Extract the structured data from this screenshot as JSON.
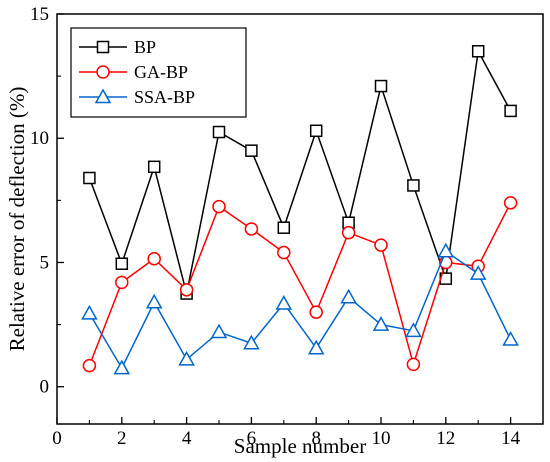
{
  "chart_data": {
    "type": "line",
    "title": "",
    "xlabel": "Sample number",
    "ylabel": "Relative error of deflection (%)",
    "xlim": [
      0,
      15
    ],
    "ylim": [
      -1.5,
      15
    ],
    "x_ticks": [
      0,
      2,
      4,
      6,
      8,
      10,
      12,
      14
    ],
    "y_ticks": [
      0,
      5,
      10,
      15
    ],
    "grid": false,
    "legend_position": "top-left",
    "x": [
      1,
      2,
      3,
      4,
      5,
      6,
      7,
      8,
      9,
      10,
      11,
      12,
      13,
      14
    ],
    "series": [
      {
        "name": "BP",
        "color": "#000000",
        "marker": "square",
        "values": [
          8.4,
          4.95,
          8.85,
          3.75,
          10.25,
          9.5,
          6.4,
          10.3,
          6.6,
          12.1,
          8.1,
          4.35,
          13.5,
          11.1
        ]
      },
      {
        "name": "GA-BP",
        "color": "#ff0000",
        "marker": "circle",
        "values": [
          0.85,
          4.2,
          5.15,
          3.9,
          7.25,
          6.35,
          5.4,
          3.0,
          6.2,
          5.7,
          0.9,
          5.0,
          4.85,
          7.4
        ]
      },
      {
        "name": "SSA-BP",
        "color": "#0066cc",
        "marker": "triangle",
        "values": [
          2.95,
          0.75,
          3.4,
          1.1,
          2.2,
          1.75,
          3.35,
          1.55,
          3.6,
          2.5,
          2.25,
          5.45,
          4.55,
          1.9
        ]
      }
    ]
  }
}
